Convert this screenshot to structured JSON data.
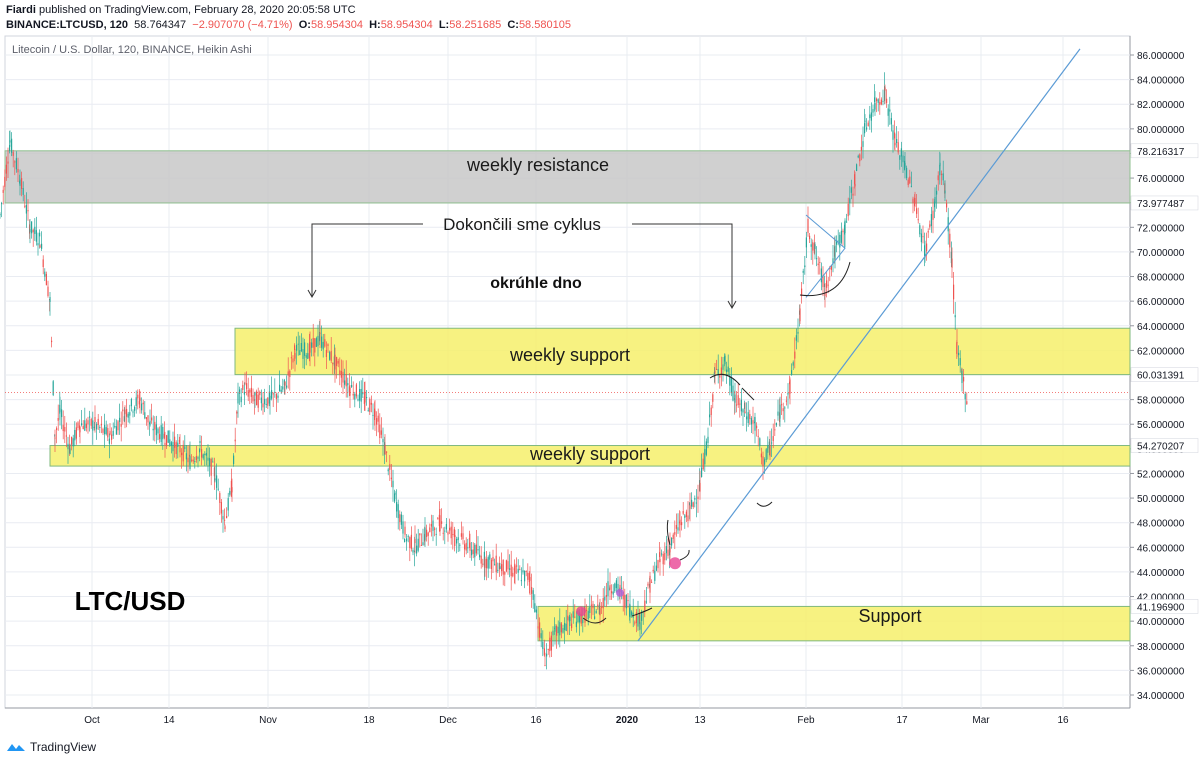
{
  "header": {
    "author": "Fiardi",
    "published_text": " published on TradingView.com, February 28, 2020 20:05:58 UTC",
    "symbol": "BINANCE:LTCUSD, 120",
    "last": "58.764347",
    "change": "−2.907070 (−4.71%)",
    "o_label": "O:",
    "o_value": "58.954304",
    "h_label": "H:",
    "h_value": "58.954304",
    "l_label": "L:",
    "l_value": "58.251685",
    "c_label": "C:",
    "c_value": "58.580105"
  },
  "pane_title": "Litecoin / U.S. Dollar, 120, BINANCE, Heikin Ashi",
  "footer": {
    "brand": "TradingView"
  },
  "colors": {
    "up": "#26a69a",
    "down": "#ef5350",
    "yellow": "#f6f06b",
    "gray_zone": "#c8c8c8",
    "trendline": "#5b9bd5",
    "grid": "#e9ecf2",
    "marker_pink": "#e84393",
    "marker_purple": "#b05cd6"
  },
  "chart_data": {
    "type": "candlestick",
    "ylim": [
      33,
      87
    ],
    "x_ticks": [
      "Oct",
      "14",
      "Nov",
      "18",
      "Dec",
      "16",
      "2020",
      "13",
      "Feb",
      "17",
      "Mar",
      "16"
    ],
    "y_ticks": [
      "34.000000",
      "36.000000",
      "38.000000",
      "40.000000",
      "42.000000",
      "44.000000",
      "46.000000",
      "48.000000",
      "50.000000",
      "52.000000",
      "54.000000",
      "56.000000",
      "58.000000",
      "60.000000",
      "62.000000",
      "64.000000",
      "66.000000",
      "68.000000",
      "70.000000",
      "72.000000",
      "74.000000",
      "76.000000",
      "78.000000",
      "80.000000",
      "82.000000",
      "84.000000",
      "86.000000"
    ],
    "price_series": [
      [
        0,
        73
      ],
      [
        10,
        79
      ],
      [
        20,
        76
      ],
      [
        30,
        72
      ],
      [
        40,
        71
      ],
      [
        50,
        66
      ],
      [
        55,
        55
      ],
      [
        60,
        57
      ],
      [
        70,
        54
      ],
      [
        80,
        56
      ],
      [
        95,
        56
      ],
      [
        110,
        55
      ],
      [
        125,
        57
      ],
      [
        140,
        58
      ],
      [
        150,
        56
      ],
      [
        165,
        55
      ],
      [
        180,
        54
      ],
      [
        190,
        53
      ],
      [
        200,
        54
      ],
      [
        215,
        52
      ],
      [
        225,
        48
      ],
      [
        232,
        51
      ],
      [
        238,
        58
      ],
      [
        245,
        59
      ],
      [
        255,
        58
      ],
      [
        270,
        58
      ],
      [
        285,
        59
      ],
      [
        295,
        62
      ],
      [
        310,
        62
      ],
      [
        320,
        63
      ],
      [
        335,
        61
      ],
      [
        350,
        59
      ],
      [
        365,
        58
      ],
      [
        375,
        57
      ],
      [
        385,
        54
      ],
      [
        395,
        50
      ],
      [
        405,
        47
      ],
      [
        415,
        46
      ],
      [
        425,
        47
      ],
      [
        440,
        48
      ],
      [
        455,
        47
      ],
      [
        470,
        46
      ],
      [
        485,
        45
      ],
      [
        500,
        44.5
      ],
      [
        515,
        44
      ],
      [
        530,
        43.5
      ],
      [
        538,
        40
      ],
      [
        545,
        37
      ],
      [
        555,
        39
      ],
      [
        570,
        40
      ],
      [
        585,
        40.5
      ],
      [
        600,
        41
      ],
      [
        610,
        43
      ],
      [
        620,
        42.5
      ],
      [
        630,
        41
      ],
      [
        640,
        40
      ],
      [
        650,
        43
      ],
      [
        660,
        45
      ],
      [
        670,
        46
      ],
      [
        680,
        48
      ],
      [
        690,
        49
      ],
      [
        700,
        51
      ],
      [
        708,
        55
      ],
      [
        715,
        60
      ],
      [
        725,
        61
      ],
      [
        735,
        58
      ],
      [
        745,
        57
      ],
      [
        755,
        56
      ],
      [
        763,
        53
      ],
      [
        770,
        54
      ],
      [
        780,
        57
      ],
      [
        790,
        59
      ],
      [
        800,
        65
      ],
      [
        808,
        72
      ],
      [
        815,
        70
      ],
      [
        825,
        67
      ],
      [
        835,
        70
      ],
      [
        845,
        72
      ],
      [
        855,
        76
      ],
      [
        865,
        80
      ],
      [
        875,
        82
      ],
      [
        885,
        83
      ],
      [
        895,
        79
      ],
      [
        905,
        77
      ],
      [
        915,
        74
      ],
      [
        925,
        70
      ],
      [
        935,
        74
      ],
      [
        940,
        77
      ],
      [
        945,
        75
      ],
      [
        952,
        69
      ],
      [
        957,
        62
      ],
      [
        962,
        60
      ],
      [
        967,
        58
      ]
    ],
    "zones": [
      {
        "label": "weekly resistance",
        "y_from": 73.977487,
        "y_to": 78.216317,
        "x_from": 5,
        "x_to": 1130,
        "kind": "gray"
      },
      {
        "label": "weekly support",
        "y_from": 60.031391,
        "y_to": 63.8,
        "x_from": 235,
        "x_to": 1130,
        "kind": "yellow"
      },
      {
        "label": "weekly support",
        "y_from": 52.6,
        "y_to": 54.270207,
        "x_from": 50,
        "x_to": 1130,
        "kind": "yellow"
      },
      {
        "label": "Support",
        "y_from": 38.4,
        "y_to": 41.1969,
        "x_from": 538,
        "x_to": 1130,
        "kind": "yellow"
      }
    ],
    "price_labels": [
      {
        "text": "78.216317",
        "y": 78.216317
      },
      {
        "text": "73.977487",
        "y": 73.977487
      },
      {
        "text": "60.031391",
        "y": 60.031391
      },
      {
        "text": "54.270207",
        "y": 54.270207
      },
      {
        "text": "41.196900",
        "y": 41.1969
      }
    ],
    "annotations": {
      "cycle_text": "Dokončili sme cyklus",
      "bottom_text": "okrúhle dno",
      "pair_text": "LTC/USD"
    }
  }
}
